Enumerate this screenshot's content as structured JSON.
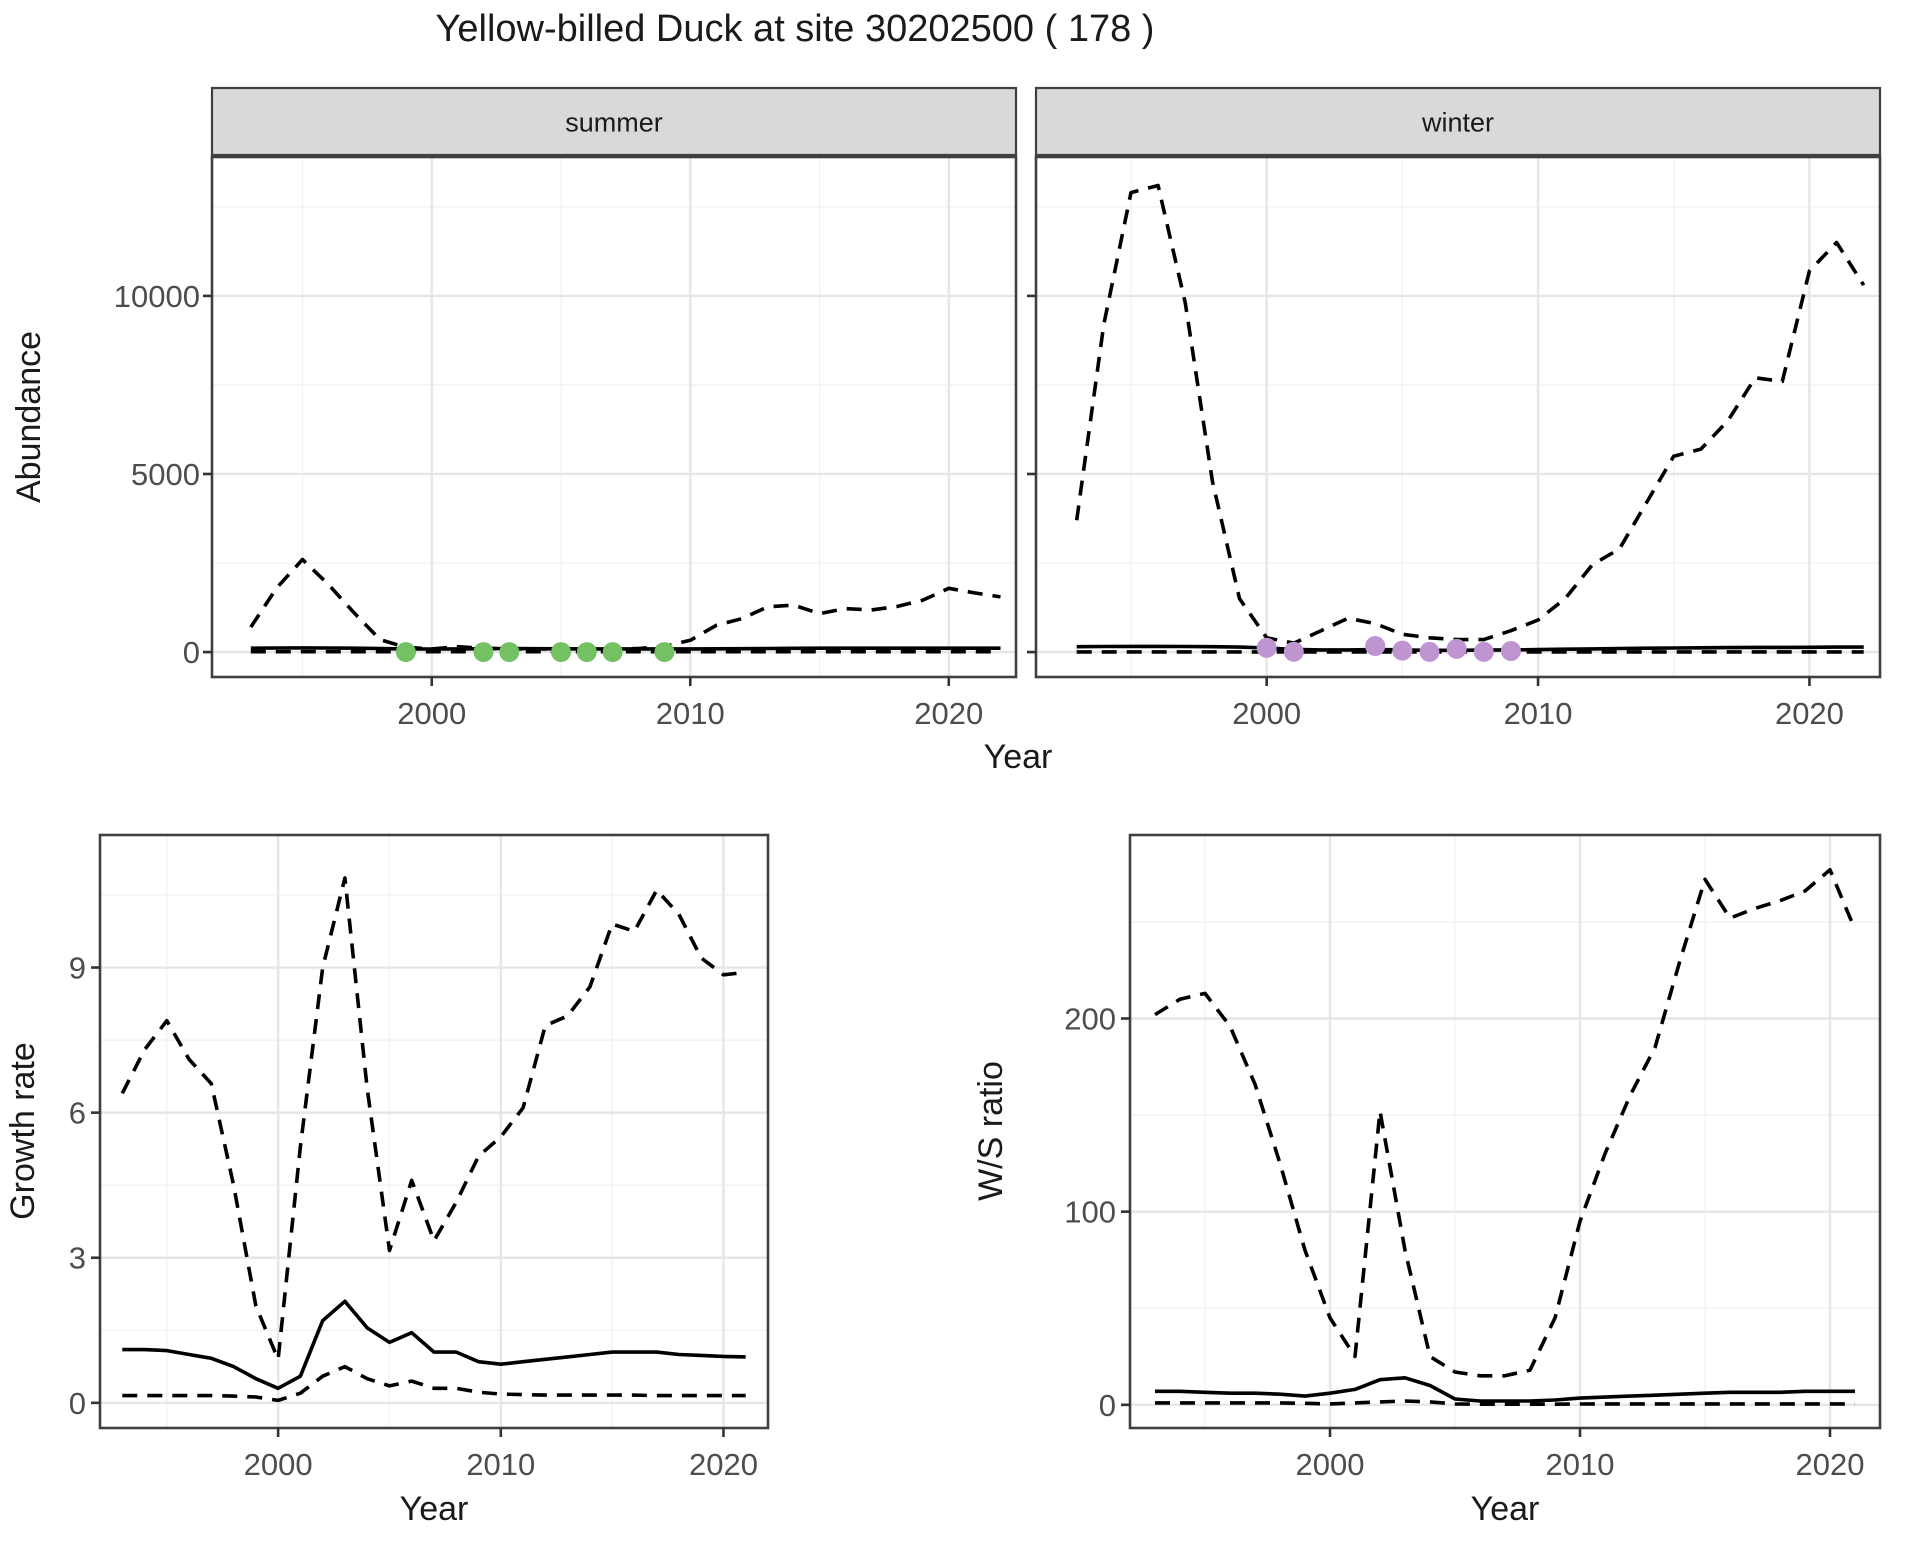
{
  "title": "Yellow-billed Duck at site 30202500 ( 178 )",
  "colors": {
    "line": "#000000",
    "summer_point": "#74c164",
    "winter_point": "#be95d1",
    "strip_fill": "#d9d9d9",
    "strip_border": "#404040",
    "panel_border": "#404040",
    "grid_major": "#e6e6e6",
    "grid_minor": "#f1f1f1",
    "tick": "#333333",
    "tick_label": "#4d4d4d",
    "text": "#1a1a1a"
  },
  "chart_data": [
    {
      "id": "abundance_summer",
      "type": "line",
      "facet_label": "summer",
      "xlabel": "Year",
      "ylabel": "Abundance",
      "x": [
        1993,
        1994,
        1995,
        1996,
        1997,
        1998,
        1999,
        2000,
        2001,
        2002,
        2003,
        2004,
        2005,
        2006,
        2007,
        2008,
        2009,
        2010,
        2011,
        2012,
        2013,
        2014,
        2015,
        2016,
        2017,
        2018,
        2019,
        2020,
        2021,
        2022
      ],
      "series": [
        {
          "name": "upper_ci",
          "style": "dashed",
          "values": [
            700,
            1800,
            2600,
            1900,
            1100,
            350,
            130,
            90,
            150,
            110,
            90,
            85,
            85,
            85,
            85,
            100,
            160,
            330,
            750,
            940,
            1270,
            1320,
            1080,
            1220,
            1180,
            1280,
            1460,
            1790,
            1660,
            1550
          ]
        },
        {
          "name": "lower_ci",
          "style": "dashed",
          "values": [
            10,
            10,
            10,
            10,
            10,
            10,
            10,
            10,
            10,
            10,
            10,
            10,
            10,
            10,
            10,
            10,
            10,
            10,
            10,
            10,
            10,
            10,
            10,
            10,
            10,
            10,
            10,
            10,
            10,
            10
          ]
        },
        {
          "name": "estimate",
          "style": "solid",
          "values": [
            110,
            115,
            118,
            115,
            110,
            100,
            90,
            85,
            90,
            95,
            100,
            95,
            92,
            90,
            90,
            90,
            88,
            88,
            92,
            95,
            100,
            105,
            108,
            110,
            110,
            110,
            110,
            110,
            110,
            110
          ]
        }
      ],
      "points": {
        "name": "summer_counts",
        "color_key": "summer_point",
        "x": [
          1999,
          2002,
          2003,
          2005,
          2006,
          2007,
          2009
        ],
        "y": [
          0,
          0,
          0,
          0,
          0,
          0,
          0
        ]
      },
      "xticks": [
        2000,
        2010,
        2020
      ],
      "yticks": [
        0,
        5000,
        10000
      ],
      "x_minor": [
        1995,
        2005,
        2015
      ],
      "y_minor": [
        2500,
        7500,
        12500
      ],
      "xlim": [
        1991.5,
        2022.6
      ],
      "ylim": [
        -700,
        13900
      ]
    },
    {
      "id": "abundance_winter",
      "type": "line",
      "facet_label": "winter",
      "xlabel": "Year",
      "ylabel": "Abundance",
      "x": [
        1993,
        1994,
        1995,
        1996,
        1997,
        1998,
        1999,
        2000,
        2001,
        2002,
        2003,
        2004,
        2005,
        2006,
        2007,
        2008,
        2009,
        2010,
        2011,
        2012,
        2013,
        2014,
        2015,
        2016,
        2017,
        2018,
        2019,
        2020,
        2021,
        2022
      ],
      "series": [
        {
          "name": "upper_ci",
          "style": "dashed",
          "values": [
            3700,
            9200,
            12900,
            13100,
            9800,
            4800,
            1500,
            400,
            250,
            600,
            950,
            800,
            500,
            400,
            350,
            350,
            600,
            900,
            1500,
            2450,
            2900,
            4200,
            5500,
            5700,
            6500,
            7700,
            7600,
            10700,
            11500,
            10300
          ]
        },
        {
          "name": "lower_ci",
          "style": "dashed",
          "values": [
            5,
            5,
            5,
            5,
            5,
            5,
            5,
            5,
            5,
            5,
            5,
            5,
            5,
            5,
            5,
            5,
            5,
            5,
            5,
            5,
            5,
            5,
            5,
            5,
            5,
            5,
            5,
            5,
            5,
            5
          ]
        },
        {
          "name": "estimate",
          "style": "solid",
          "values": [
            150,
            155,
            160,
            160,
            155,
            150,
            140,
            115,
            75,
            60,
            60,
            70,
            60,
            50,
            50,
            55,
            60,
            70,
            80,
            90,
            100,
            110,
            115,
            120,
            125,
            130,
            130,
            135,
            140,
            140
          ]
        }
      ],
      "points": {
        "name": "winter_counts",
        "color_key": "winter_point",
        "x": [
          2000,
          2001,
          2004,
          2005,
          2006,
          2007,
          2008,
          2009
        ],
        "y": [
          120,
          10,
          170,
          40,
          5,
          90,
          5,
          30
        ]
      },
      "xticks": [
        2000,
        2010,
        2020
      ],
      "yticks": [
        0,
        5000,
        10000
      ],
      "x_minor": [
        1995,
        2005,
        2015
      ],
      "y_minor": [
        2500,
        7500,
        12500
      ],
      "xlim": [
        1991.5,
        2022.6
      ],
      "ylim": [
        -700,
        13900
      ]
    },
    {
      "id": "growth_rate",
      "type": "line",
      "facet_label": "",
      "xlabel": "Year",
      "ylabel": "Growth rate",
      "x": [
        1993,
        1994,
        1995,
        1996,
        1997,
        1998,
        1999,
        2000,
        2001,
        2002,
        2003,
        2004,
        2005,
        2006,
        2007,
        2008,
        2009,
        2010,
        2011,
        2012,
        2013,
        2014,
        2015,
        2016,
        2017,
        2018,
        2019,
        2020,
        2021
      ],
      "series": [
        {
          "name": "upper_ci",
          "style": "dashed",
          "values": [
            6.4,
            7.3,
            7.9,
            7.1,
            6.6,
            4.5,
            2.0,
            0.9,
            5.3,
            9.0,
            10.85,
            6.5,
            3.15,
            4.6,
            3.35,
            4.15,
            5.1,
            5.5,
            6.1,
            7.8,
            8.0,
            8.6,
            9.9,
            9.75,
            10.6,
            10.1,
            9.2,
            8.85,
            8.9
          ]
        },
        {
          "name": "lower_ci",
          "style": "dashed",
          "values": [
            0.15,
            0.15,
            0.15,
            0.15,
            0.15,
            0.14,
            0.12,
            0.05,
            0.2,
            0.55,
            0.75,
            0.5,
            0.35,
            0.45,
            0.3,
            0.3,
            0.22,
            0.18,
            0.17,
            0.16,
            0.16,
            0.16,
            0.16,
            0.16,
            0.15,
            0.15,
            0.15,
            0.15,
            0.15
          ]
        },
        {
          "name": "estimate",
          "style": "solid",
          "values": [
            1.1,
            1.1,
            1.08,
            1.0,
            0.92,
            0.75,
            0.5,
            0.3,
            0.55,
            1.7,
            2.1,
            1.55,
            1.25,
            1.45,
            1.05,
            1.05,
            0.85,
            0.8,
            0.85,
            0.9,
            0.95,
            1.0,
            1.05,
            1.05,
            1.05,
            1.0,
            0.98,
            0.96,
            0.95
          ]
        }
      ],
      "points": null,
      "xticks": [
        2000,
        2010,
        2020
      ],
      "yticks": [
        0,
        3,
        6,
        9
      ],
      "x_minor": [
        1995,
        2005,
        2015
      ],
      "y_minor": [
        1.5,
        4.5,
        7.5,
        10.5
      ],
      "xlim": [
        1992.0,
        2022.0
      ],
      "ylim": [
        -0.52,
        11.74
      ]
    },
    {
      "id": "ws_ratio",
      "type": "line",
      "facet_label": "",
      "xlabel": "Year",
      "ylabel": "W/S ratio",
      "x": [
        1993,
        1994,
        1995,
        1996,
        1997,
        1998,
        1999,
        2000,
        2001,
        2002,
        2003,
        2004,
        2005,
        2006,
        2007,
        2008,
        2009,
        2010,
        2011,
        2012,
        2013,
        2014,
        2015,
        2016,
        2017,
        2018,
        2019,
        2020,
        2021
      ],
      "series": [
        {
          "name": "upper_ci",
          "style": "dashed",
          "values": [
            202,
            210,
            213,
            196,
            166,
            125,
            80,
            45,
            25,
            152,
            80,
            25,
            17,
            15,
            15,
            18,
            45,
            95,
            130,
            160,
            185,
            230,
            272,
            252,
            257,
            261,
            266,
            277,
            246
          ]
        },
        {
          "name": "lower_ci",
          "style": "dashed",
          "values": [
            1,
            1,
            1,
            1,
            1,
            1,
            0.8,
            0.5,
            1,
            1.5,
            2,
            1.5,
            0.5,
            0.3,
            0.3,
            0.3,
            0.3,
            0.4,
            0.5,
            0.5,
            0.5,
            0.5,
            0.5,
            0.5,
            0.5,
            0.5,
            0.5,
            0.5,
            0.5
          ]
        },
        {
          "name": "estimate",
          "style": "solid",
          "values": [
            7,
            7,
            6.5,
            6,
            6,
            5.5,
            4.5,
            6,
            8,
            13,
            14,
            10,
            3,
            2,
            2,
            2,
            2.5,
            3.5,
            4,
            4.5,
            5,
            5.5,
            6,
            6.5,
            6.5,
            6.5,
            7,
            7,
            7
          ]
        }
      ],
      "points": null,
      "xticks": [
        2000,
        2010,
        2020
      ],
      "yticks": [
        0,
        100,
        200
      ],
      "x_minor": [
        1995,
        2005,
        2015
      ],
      "y_minor": [
        50,
        150,
        250
      ],
      "xlim": [
        1992.0,
        2022.0
      ],
      "ylim": [
        -12,
        295
      ]
    }
  ],
  "axis_titles": {
    "top_x": "Year",
    "top_y": "Abundance",
    "growth_x": "Year",
    "growth_y": "Growth rate",
    "ratio_x": "Year",
    "ratio_y": "W/S ratio"
  }
}
